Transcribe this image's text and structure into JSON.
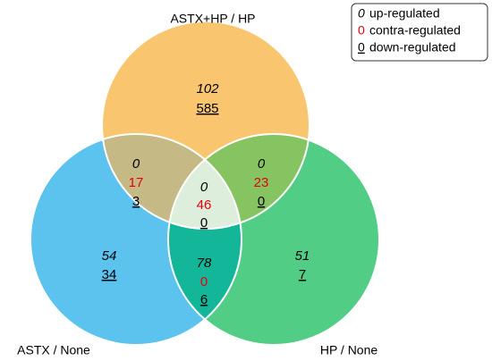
{
  "set_labels": {
    "top": "ASTX+HP  / HP",
    "left": "ASTX / None",
    "right": "HP / None"
  },
  "legend": [
    {
      "symbol": "0",
      "text": "up-regulated"
    },
    {
      "symbol": "0",
      "text": "contra-regulated"
    },
    {
      "symbol": "0",
      "text": "down-regulated"
    }
  ],
  "regions": {
    "top": {
      "up": 102,
      "down": 585
    },
    "top_left": {
      "up": 0,
      "contra": 17,
      "down": 3
    },
    "top_right": {
      "up": 0,
      "contra": 23,
      "down": 0
    },
    "center": {
      "up": 0,
      "contra": 46,
      "down": 0
    },
    "left": {
      "up": 54,
      "down": 34
    },
    "right": {
      "up": 51,
      "down": 7
    },
    "bottom": {
      "up": 78,
      "contra": 0,
      "down": 6
    }
  }
}
